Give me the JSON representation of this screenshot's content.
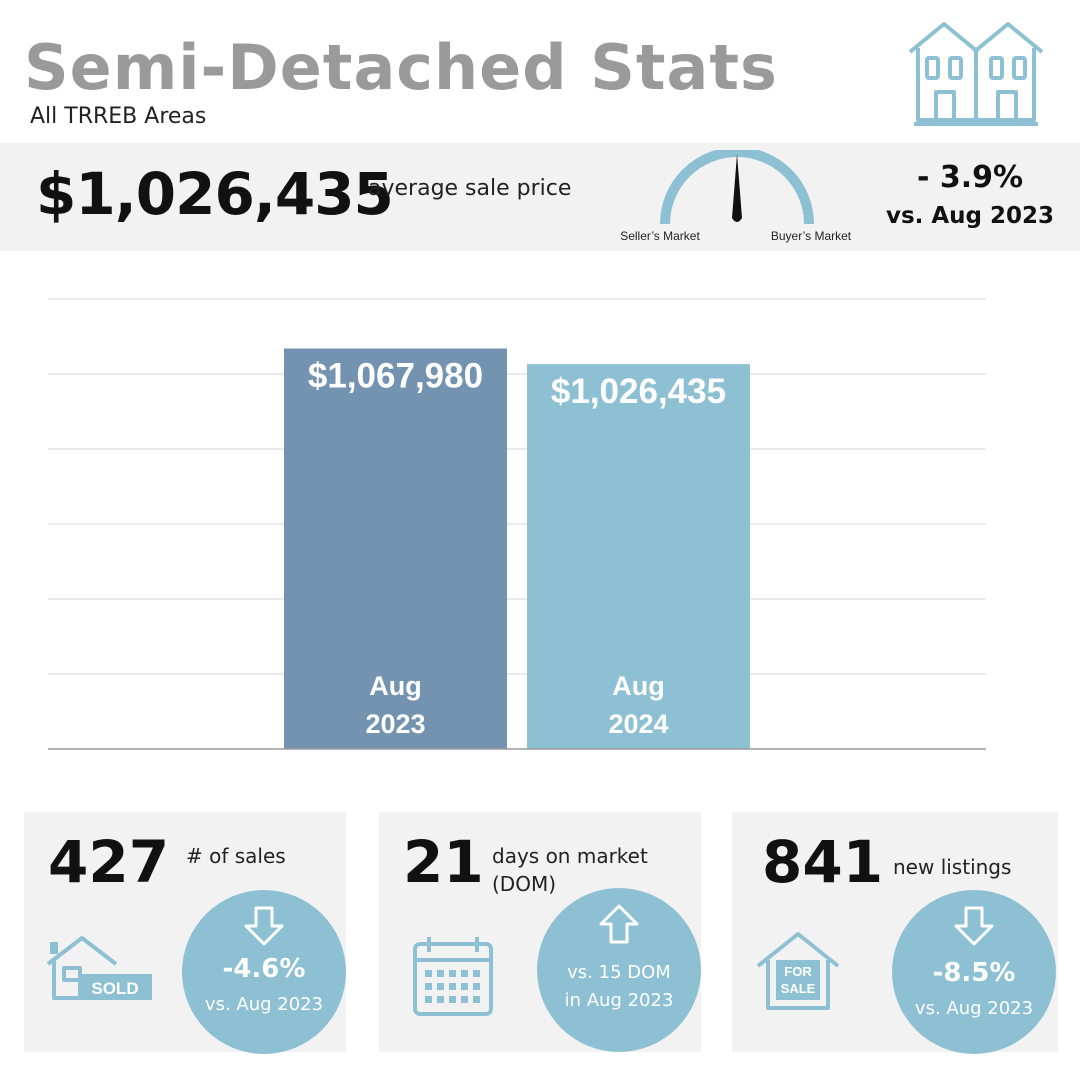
{
  "header": {
    "title": "Semi-Detached Stats",
    "subtitle": "All TRREB Areas",
    "logo_icon": "semi-detached-house-icon"
  },
  "price_summary": {
    "average_price": "$1,026,435",
    "average_label": "average sale price",
    "gauge": {
      "left_label": "Seller’s Market",
      "right_label": "Buyer’s Market"
    },
    "change": "- 3.9%",
    "change_vs": "vs. Aug 2023"
  },
  "chart_data": {
    "type": "bar",
    "categories": [
      "Aug 2023",
      "Aug 2024"
    ],
    "category_lines": [
      [
        "Aug",
        "2023"
      ],
      [
        "Aug",
        "2024"
      ]
    ],
    "values": [
      1067980,
      1026435
    ],
    "value_labels": [
      "$1,067,980",
      "$1,026,435"
    ],
    "colors": [
      "#7393b1",
      "#8ec0d4"
    ],
    "ylim": [
      0,
      1200000
    ],
    "grid": true,
    "title": "",
    "xlabel": "",
    "ylabel": ""
  },
  "stats": [
    {
      "value": "427",
      "label": "# of sales",
      "change": "-4.6%",
      "vs": "vs. Aug 2023",
      "direction": "down",
      "icon": "sold-house-icon"
    },
    {
      "value": "21",
      "label": "days on market (DOM)",
      "change_line1": "vs. 15 DOM",
      "change_line2": "in Aug 2023",
      "direction": "up",
      "icon": "calendar-icon"
    },
    {
      "value": "841",
      "label": "new listings",
      "change": "-8.5%",
      "vs": "vs. Aug 2023",
      "direction": "down",
      "icon": "for-sale-house-icon"
    }
  ],
  "colors": {
    "accent": "#8ec0d4",
    "bar_previous": "#7393b1",
    "band": "#f2f2f2",
    "title_gray": "#9a9a9a"
  }
}
